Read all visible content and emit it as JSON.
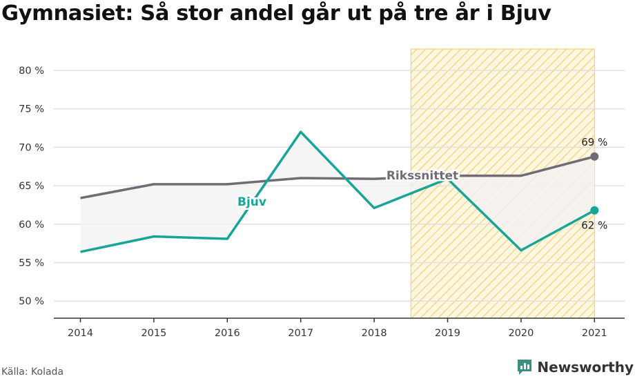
{
  "title": "Gymnasiet: Så stor andel går ut på tre år i Bjuv",
  "source": "Källa: Kolada",
  "brand": {
    "name": "Newsworthy",
    "icon": "newsworthy-logo-icon"
  },
  "colors": {
    "bjuv": "#17a598",
    "riks": "#716b75",
    "highlight": "#f3c95a",
    "fill": "#f3f3f3",
    "grid": "#e0e0e0"
  },
  "chart_data": {
    "type": "line",
    "title": "Gymnasiet: Så stor andel går ut på tre år i Bjuv",
    "xlabel": "",
    "ylabel": "",
    "x": [
      "2014",
      "2015",
      "2016",
      "2017",
      "2018",
      "2019",
      "2020",
      "2021"
    ],
    "series": [
      {
        "name": "Bjuv",
        "values": [
          56.4,
          58.4,
          58.1,
          72.0,
          62.1,
          65.9,
          56.6,
          61.8
        ]
      },
      {
        "name": "Rikssnittet",
        "values": [
          63.4,
          65.2,
          65.2,
          66.0,
          65.9,
          66.3,
          66.3,
          68.8
        ]
      }
    ],
    "ylim": [
      48,
      83
    ],
    "yticks": [
      50,
      55,
      60,
      65,
      70,
      75,
      80
    ],
    "ytick_labels": [
      "50 %",
      "55 %",
      "60 %",
      "65 %",
      "70 %",
      "75 %",
      "80 %"
    ],
    "highlight_range": [
      "2019",
      "2021"
    ],
    "end_labels": {
      "Rikssnittet": "69 %",
      "Bjuv": "62 %"
    },
    "grid": true
  }
}
